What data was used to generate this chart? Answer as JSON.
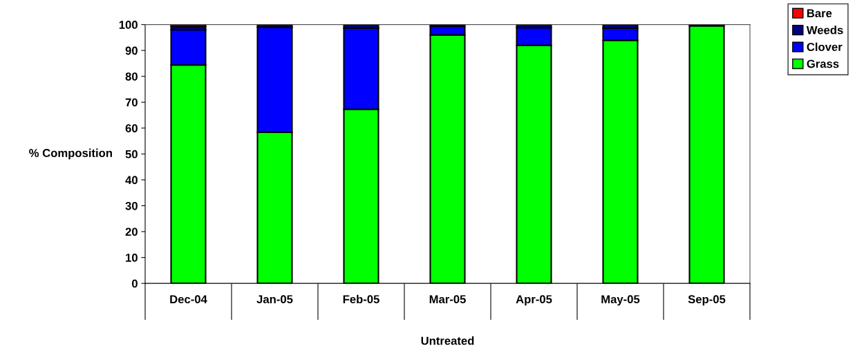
{
  "chart_data": {
    "type": "bar",
    "stacked": true,
    "ylabel": "% Composition",
    "xlabel": "Untreated",
    "categories": [
      "Dec-04",
      "Jan-05",
      "Feb-05",
      "Mar-05",
      "Apr-05",
      "May-05",
      "Sep-05"
    ],
    "series": [
      {
        "name": "Grass",
        "color": "#00ff00",
        "values": [
          84.4,
          58.4,
          67.3,
          96.0,
          92.0,
          93.9,
          99.5
        ]
      },
      {
        "name": "Clover",
        "color": "#0000ff",
        "values": [
          13.6,
          40.6,
          31.3,
          3.3,
          6.8,
          4.7,
          null
        ]
      },
      {
        "name": "Weeds",
        "color": "#000080",
        "values": [
          1.3,
          1.0,
          1.4,
          0.7,
          1.2,
          1.4,
          0.5
        ]
      },
      {
        "name": "Bare",
        "color": "#ff0000",
        "values": [
          0.7,
          null,
          null,
          null,
          null,
          null,
          null
        ]
      }
    ],
    "ylim": [
      0,
      100
    ],
    "yticks": [
      0,
      10,
      20,
      30,
      40,
      50,
      60,
      70,
      80,
      90,
      100
    ],
    "grid": false,
    "legend": "top right"
  }
}
